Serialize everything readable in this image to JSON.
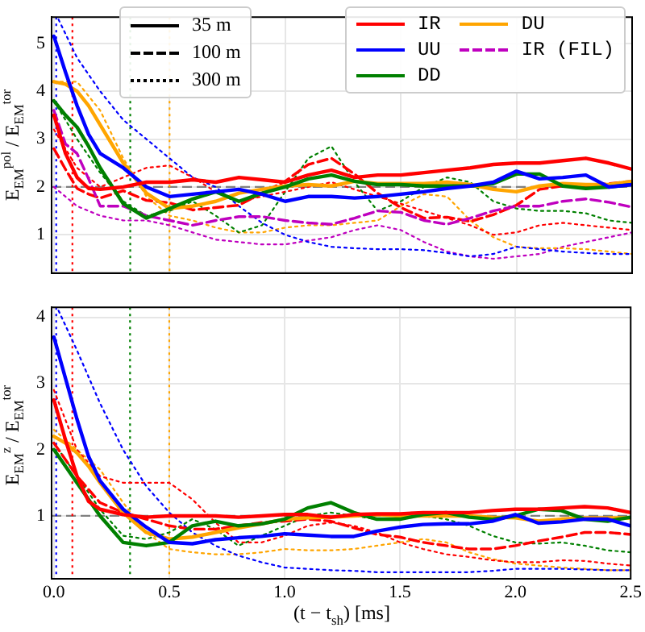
{
  "chart_data": [
    {
      "type": "line",
      "ylabel": "E$_{EM}$$^{pol}$ / E$_{EM}$$^{tor}$",
      "xlim": [
        -0.01,
        2.5
      ],
      "xticks": [
        0,
        0.5,
        1,
        1.5,
        2,
        2.5
      ],
      "ylim": [
        0.2,
        5.55
      ],
      "yticks": [
        1,
        2,
        3,
        4,
        5
      ],
      "tick_labels": "y",
      "grid": true,
      "legend": "top right",
      "annotations": [
        "35 m",
        "100 m",
        "300 m"
      ],
      "x": [
        0,
        0.05,
        0.1,
        0.15,
        0.2,
        0.3,
        0.4,
        0.5,
        0.6,
        0.7,
        0.8,
        0.9,
        1.0,
        1.1,
        1.2,
        1.3,
        1.4,
        1.5,
        1.6,
        1.7,
        1.8,
        1.9,
        2.0,
        2.1,
        2.2,
        2.3,
        2.4,
        2.5
      ],
      "ref_lines": [
        {
          "axis": "y",
          "value": 2,
          "color": "#808080",
          "line_style": "dashed"
        },
        {
          "axis": "x",
          "value": 0.01,
          "color": "#0000ff",
          "line_style": "dotted"
        },
        {
          "axis": "x",
          "value": 0.08,
          "color": "#ff0000",
          "line_style": "dotted"
        },
        {
          "axis": "x",
          "value": 0.33,
          "color": "#008000",
          "line_style": "dotted"
        },
        {
          "axis": "x",
          "value": 0.5,
          "color": "#ffa500",
          "line_style": "dotted"
        }
      ],
      "series": [
        {
          "name": "IR",
          "color": "#ff0000",
          "line_style": "solid",
          "values": [
            3.5,
            2.7,
            2.2,
            1.97,
            1.95,
            2.0,
            2.1,
            2.1,
            2.15,
            2.1,
            2.2,
            2.15,
            2.1,
            2.25,
            2.35,
            2.2,
            2.25,
            2.25,
            2.3,
            2.35,
            2.4,
            2.47,
            2.5,
            2.5,
            2.55,
            2.6,
            2.5,
            2.37
          ]
        },
        {
          "name": "UU",
          "color": "#0000ff",
          "line_style": "solid",
          "values": [
            5.15,
            4.4,
            3.7,
            3.1,
            2.7,
            2.4,
            2.0,
            1.8,
            1.85,
            1.9,
            1.95,
            1.85,
            1.7,
            1.8,
            1.8,
            1.77,
            1.8,
            1.85,
            1.9,
            1.97,
            2.02,
            2.1,
            2.33,
            2.17,
            2.2,
            2.25,
            2.0,
            2.05
          ]
        },
        {
          "name": "DD",
          "color": "#008000",
          "line_style": "solid",
          "values": [
            3.8,
            3.5,
            3.25,
            2.85,
            2.4,
            1.65,
            1.35,
            1.55,
            1.75,
            1.9,
            1.7,
            1.87,
            2.0,
            2.17,
            2.25,
            2.12,
            2.05,
            2.05,
            2.02,
            2.02,
            2.02,
            2.07,
            2.27,
            2.27,
            2.02,
            1.97,
            2.0,
            2.05
          ]
        },
        {
          "name": "DU",
          "color": "#ffa500",
          "line_style": "solid",
          "values": [
            4.2,
            4.15,
            4.0,
            3.7,
            3.3,
            2.5,
            1.87,
            1.55,
            1.6,
            1.7,
            1.87,
            1.95,
            2.02,
            2.05,
            2.02,
            2.12,
            2.07,
            2.07,
            2.07,
            2.1,
            2.05,
            1.95,
            1.9,
            2.02,
            2.07,
            2.05,
            2.05,
            2.12
          ]
        },
        {
          "name": "IR (FIL)",
          "color": "#bf00bf",
          "line_style": "dashed",
          "values": [
            3.6,
            2.9,
            2.7,
            2.17,
            1.6,
            1.6,
            1.4,
            1.3,
            1.2,
            1.3,
            1.38,
            1.38,
            1.3,
            1.25,
            1.22,
            1.35,
            1.5,
            1.47,
            1.3,
            1.22,
            1.35,
            1.5,
            1.6,
            1.6,
            1.7,
            1.75,
            1.68,
            1.58
          ]
        },
        {
          "color": "#ff0000",
          "line_style": "dashed",
          "values": [
            2.8,
            2.37,
            1.97,
            1.85,
            1.77,
            1.92,
            1.72,
            1.67,
            1.52,
            1.57,
            1.62,
            1.87,
            2.12,
            2.47,
            2.6,
            2.27,
            1.87,
            1.57,
            1.35,
            1.37,
            1.28,
            1.42,
            1.62,
            1.95,
            2.02,
            2.02,
            2.07,
            2.12
          ]
        },
        {
          "color": "#ff0000",
          "line_style": "dotted",
          "x": [
            0,
            0.1,
            0.2,
            0.3,
            0.4,
            0.5,
            0.6,
            0.7,
            0.8,
            0.9,
            1.0,
            1.1,
            1.2,
            1.3,
            1.4,
            1.5,
            1.6,
            1.7,
            1.8,
            1.9,
            2.0,
            2.1,
            2.2,
            2.3,
            2.4,
            2.5
          ],
          "values": [
            3.2,
            2.4,
            2.0,
            2.2,
            2.4,
            2.45,
            2.2,
            1.9,
            1.7,
            1.8,
            1.9,
            2.0,
            2.1,
            1.95,
            1.8,
            1.65,
            1.5,
            1.35,
            1.2,
            1.0,
            1.05,
            1.2,
            1.25,
            1.2,
            1.15,
            1.1
          ]
        },
        {
          "color": "#0000ff",
          "line_style": "dotted",
          "x": [
            0.02,
            0.1,
            0.2,
            0.3,
            0.4,
            0.5,
            0.6,
            0.7,
            0.8,
            0.9,
            1.0,
            1.1,
            1.2,
            1.3,
            1.4,
            1.5,
            1.6,
            1.7,
            1.8,
            1.9,
            2.0,
            2.1,
            2.2,
            2.3,
            2.4,
            2.5
          ],
          "values": [
            5.5,
            4.7,
            4.0,
            3.4,
            3.0,
            2.6,
            2.2,
            2.0,
            1.6,
            1.25,
            1.0,
            0.85,
            0.75,
            0.72,
            0.7,
            0.7,
            0.68,
            0.62,
            0.55,
            0.6,
            0.75,
            0.7,
            0.65,
            0.62,
            0.6,
            0.6
          ]
        },
        {
          "color": "#008000",
          "line_style": "dotted",
          "x": [
            0,
            0.1,
            0.2,
            0.3,
            0.4,
            0.5,
            0.6,
            0.7,
            0.8,
            0.9,
            1.0,
            1.1,
            1.2,
            1.3,
            1.4,
            1.5,
            1.6,
            1.7,
            1.8,
            1.9,
            2.0,
            2.1,
            2.2,
            2.3,
            2.4,
            2.5
          ],
          "values": [
            3.8,
            3.0,
            2.3,
            1.7,
            1.4,
            1.5,
            1.7,
            1.4,
            1.05,
            1.2,
            1.9,
            2.6,
            2.85,
            2.1,
            1.5,
            1.7,
            2.0,
            2.2,
            2.1,
            1.7,
            1.55,
            1.5,
            1.5,
            1.45,
            1.3,
            1.25
          ]
        },
        {
          "color": "#ffa500",
          "line_style": "dotted",
          "x": [
            0,
            0.1,
            0.2,
            0.3,
            0.4,
            0.5,
            0.6,
            0.7,
            0.8,
            0.9,
            1.0,
            1.1,
            1.2,
            1.3,
            1.4,
            1.5,
            1.6,
            1.7,
            1.8,
            1.9,
            2.0,
            2.1,
            2.2,
            2.3,
            2.4,
            2.5
          ],
          "values": [
            4.2,
            4.2,
            3.6,
            2.6,
            1.8,
            1.4,
            1.3,
            1.15,
            1.05,
            1.05,
            1.15,
            1.2,
            1.2,
            1.25,
            1.3,
            1.6,
            1.85,
            1.8,
            1.3,
            0.95,
            0.75,
            0.72,
            0.72,
            0.7,
            0.65,
            0.6
          ]
        },
        {
          "color": "#bf00bf",
          "line_style": "dotted",
          "x": [
            0,
            0.1,
            0.2,
            0.3,
            0.4,
            0.5,
            0.6,
            0.7,
            0.8,
            0.9,
            1.0,
            1.1,
            1.2,
            1.3,
            1.4,
            1.5,
            1.6,
            1.7,
            1.8,
            1.9,
            2.0,
            2.1,
            2.2,
            2.3,
            2.4,
            2.5
          ],
          "values": [
            2.0,
            1.6,
            1.4,
            1.3,
            1.3,
            1.2,
            1.05,
            0.9,
            0.85,
            0.8,
            0.8,
            0.88,
            0.95,
            1.1,
            1.2,
            1.1,
            0.85,
            0.65,
            0.55,
            0.5,
            0.55,
            0.6,
            0.75,
            0.85,
            0.95,
            1.05
          ]
        }
      ]
    },
    {
      "type": "line",
      "ylabel": "E$_{EM}$$^{z}$ / E$_{EM}$$^{tor}$",
      "xlabel": "(t − t$_{sh}$) [ms]",
      "xlim": [
        -0.01,
        2.5
      ],
      "xticks": [
        {
          "value": 0,
          "label": "0.0"
        },
        {
          "value": 0.5,
          "label": "0.5"
        },
        {
          "value": 1,
          "label": "1.0"
        },
        {
          "value": 1.5,
          "label": "1.5"
        },
        {
          "value": 2,
          "label": "2.0"
        },
        {
          "value": 2.5,
          "label": "2.5"
        }
      ],
      "ylim": [
        0.05,
        4.15
      ],
      "yticks": [
        1,
        2,
        3,
        4
      ],
      "grid": true,
      "x": [
        0,
        0.05,
        0.1,
        0.15,
        0.2,
        0.3,
        0.4,
        0.5,
        0.6,
        0.7,
        0.8,
        0.9,
        1.0,
        1.1,
        1.2,
        1.3,
        1.4,
        1.5,
        1.6,
        1.7,
        1.8,
        1.9,
        2.0,
        2.1,
        2.2,
        2.3,
        2.4,
        2.5
      ],
      "ref_lines": [
        {
          "axis": "y",
          "value": 1,
          "color": "#808080",
          "line_style": "dashed"
        },
        {
          "axis": "x",
          "value": 0.01,
          "color": "#0000ff",
          "line_style": "dotted"
        },
        {
          "axis": "x",
          "value": 0.08,
          "color": "#ff0000",
          "line_style": "dotted"
        },
        {
          "axis": "x",
          "value": 0.33,
          "color": "#008000",
          "line_style": "dotted"
        },
        {
          "axis": "x",
          "value": 0.5,
          "color": "#ffa500",
          "line_style": "dotted"
        }
      ],
      "series": [
        {
          "color": "#ff0000",
          "line_style": "solid",
          "values": [
            2.75,
            2.15,
            1.6,
            1.22,
            1.1,
            1.02,
            0.98,
            1.0,
            1.0,
            1.0,
            0.98,
            1.0,
            1.02,
            1.02,
            0.98,
            1.02,
            1.03,
            1.03,
            1.05,
            1.05,
            1.05,
            1.08,
            1.1,
            1.1,
            1.12,
            1.14,
            1.12,
            1.05
          ]
        },
        {
          "color": "#0000ff",
          "line_style": "solid",
          "values": [
            3.7,
            3.08,
            2.46,
            1.9,
            1.53,
            1.1,
            0.83,
            0.6,
            0.58,
            0.64,
            0.67,
            0.69,
            0.73,
            0.71,
            0.69,
            0.69,
            0.77,
            0.83,
            0.87,
            0.88,
            0.88,
            0.92,
            1.02,
            0.89,
            0.91,
            0.95,
            0.95,
            0.85
          ]
        },
        {
          "color": "#008000",
          "line_style": "solid",
          "values": [
            2.0,
            1.75,
            1.5,
            1.25,
            1.0,
            0.6,
            0.55,
            0.6,
            0.85,
            0.92,
            0.85,
            0.88,
            0.95,
            1.12,
            1.2,
            1.05,
            0.95,
            0.95,
            1.02,
            1.05,
            0.98,
            0.95,
            1.0,
            1.1,
            1.08,
            0.95,
            0.92,
            0.98
          ]
        },
        {
          "color": "#ffa500",
          "line_style": "solid",
          "values": [
            2.2,
            2.1,
            1.95,
            1.75,
            1.5,
            1.05,
            0.75,
            0.65,
            0.68,
            0.75,
            0.82,
            0.88,
            0.95,
            0.97,
            0.98,
            1.0,
            1.02,
            1.0,
            1.0,
            1.0,
            1.0,
            0.98,
            0.97,
            0.92,
            0.95,
            0.97,
            0.97,
            0.97
          ]
        },
        {
          "color": "#ff0000",
          "line_style": "dashed",
          "x": [
            0,
            0.1,
            0.2,
            0.3,
            0.4,
            0.5,
            0.6,
            0.7,
            0.8,
            0.9,
            1.0,
            1.1,
            1.2,
            1.3,
            1.4,
            1.5,
            1.6,
            1.7,
            1.8,
            1.9,
            2.0,
            2.1,
            2.2,
            2.3,
            2.4,
            2.5
          ],
          "values": [
            2.1,
            1.6,
            1.2,
            1.05,
            0.95,
            0.85,
            0.8,
            0.8,
            0.85,
            0.9,
            0.92,
            0.95,
            0.92,
            0.82,
            0.72,
            0.68,
            0.6,
            0.55,
            0.5,
            0.5,
            0.55,
            0.62,
            0.68,
            0.75,
            0.75,
            0.72
          ]
        },
        {
          "color": "#0000ff",
          "line_style": "dotted",
          "x": [
            0.02,
            0.1,
            0.2,
            0.3,
            0.4,
            0.5,
            0.6,
            0.7,
            0.8,
            0.9,
            1.0,
            1.1,
            1.2,
            1.3,
            1.4,
            1.5,
            1.6,
            1.7,
            1.8,
            1.9,
            2.0,
            2.1,
            2.2,
            2.3,
            2.4,
            2.5
          ],
          "values": [
            4.1,
            3.5,
            2.7,
            2.0,
            1.45,
            1.05,
            0.75,
            0.55,
            0.4,
            0.3,
            0.22,
            0.2,
            0.18,
            0.17,
            0.15,
            0.15,
            0.15,
            0.15,
            0.15,
            0.17,
            0.2,
            0.2,
            0.2,
            0.19,
            0.18,
            0.18
          ]
        },
        {
          "color": "#ff0000",
          "line_style": "dotted",
          "x": [
            0,
            0.1,
            0.2,
            0.3,
            0.4,
            0.5,
            0.6,
            0.7,
            0.8,
            0.9,
            1.0,
            1.1,
            1.2,
            1.3,
            1.4,
            1.5,
            1.6,
            1.7,
            1.8,
            1.9,
            2.0,
            2.1,
            2.2,
            2.3,
            2.4,
            2.5
          ],
          "values": [
            2.9,
            2.0,
            1.6,
            1.5,
            1.5,
            1.5,
            1.25,
            0.9,
            0.6,
            0.6,
            0.7,
            0.85,
            0.9,
            0.85,
            0.75,
            0.6,
            0.5,
            0.42,
            0.38,
            0.33,
            0.3,
            0.3,
            0.33,
            0.32,
            0.28,
            0.25
          ]
        },
        {
          "color": "#008000",
          "line_style": "dotted",
          "x": [
            0,
            0.1,
            0.2,
            0.3,
            0.4,
            0.5,
            0.6,
            0.7,
            0.8,
            0.9,
            1.0,
            1.1,
            1.2,
            1.3,
            1.4,
            1.5,
            1.6,
            1.7,
            1.8,
            1.9,
            2.0,
            2.1,
            2.2,
            2.3,
            2.4,
            2.5
          ],
          "values": [
            2.1,
            1.6,
            1.1,
            0.7,
            0.65,
            0.75,
            0.95,
            0.8,
            0.55,
            0.7,
            0.85,
            1.0,
            1.05,
            1.0,
            0.95,
            0.97,
            1.0,
            0.95,
            0.85,
            0.7,
            0.6,
            0.58,
            0.6,
            0.55,
            0.48,
            0.45
          ]
        },
        {
          "color": "#ffa500",
          "line_style": "dotted",
          "x": [
            0,
            0.1,
            0.2,
            0.3,
            0.4,
            0.5,
            0.6,
            0.7,
            0.8,
            0.9,
            1.0,
            1.1,
            1.2,
            1.3,
            1.4,
            1.5,
            1.6,
            1.7,
            1.8,
            1.9,
            2.0,
            2.1,
            2.2,
            2.3,
            2.4,
            2.5
          ],
          "values": [
            2.3,
            2.0,
            1.7,
            1.2,
            0.75,
            0.5,
            0.45,
            0.42,
            0.42,
            0.45,
            0.5,
            0.48,
            0.48,
            0.5,
            0.55,
            0.6,
            0.65,
            0.6,
            0.45,
            0.35,
            0.28,
            0.25,
            0.22,
            0.2,
            0.18,
            0.18
          ]
        }
      ]
    }
  ]
}
